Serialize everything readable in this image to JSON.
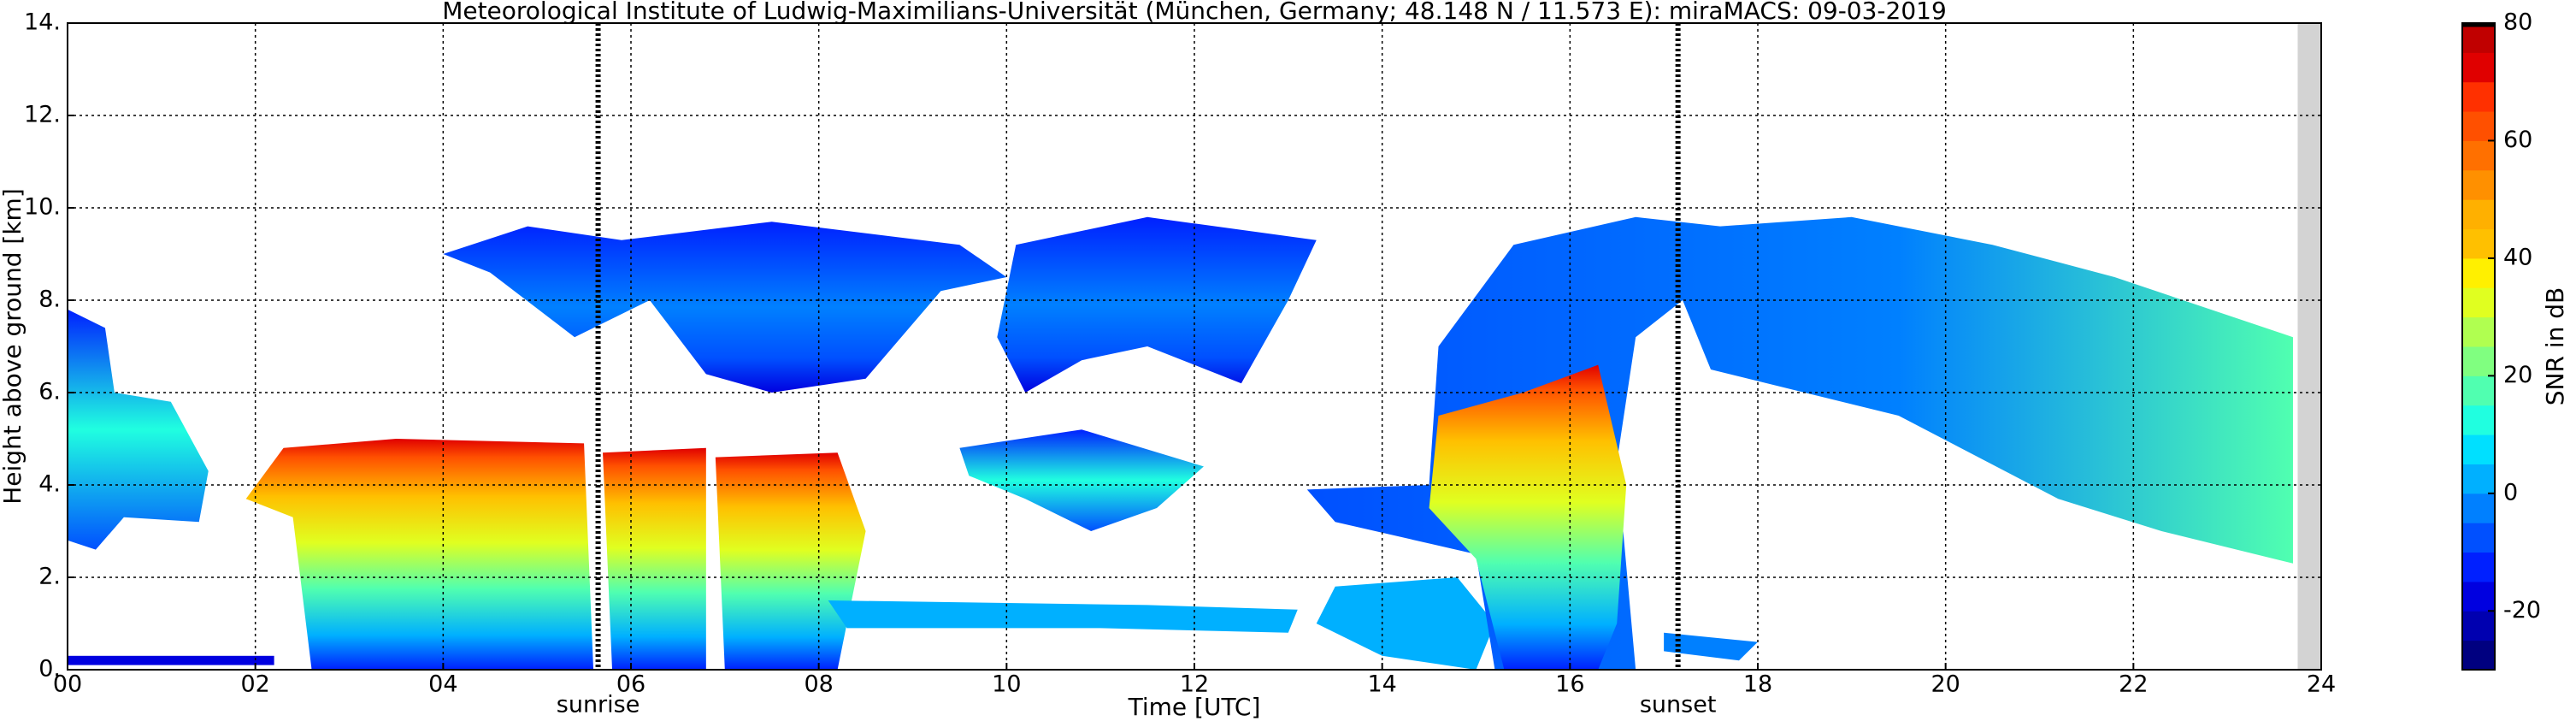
{
  "chart_data": {
    "type": "heatmap",
    "title": "Meteorological Institute of Ludwig-Maximilians-Universität (München, Germany; 48.148 N / 11.573 E):    miraMACS: 09-03-2019",
    "xlabel": "Time [UTC]",
    "ylabel": "Height above ground [km]",
    "xlim": [
      0,
      24
    ],
    "xticks": [
      {
        "value": 0,
        "label": "00"
      },
      {
        "value": 2,
        "label": "02"
      },
      {
        "value": 4,
        "label": "04"
      },
      {
        "value": 6,
        "label": "06"
      },
      {
        "value": 8,
        "label": "08"
      },
      {
        "value": 10,
        "label": "10"
      },
      {
        "value": 12,
        "label": "12"
      },
      {
        "value": 14,
        "label": "14"
      },
      {
        "value": 16,
        "label": "16"
      },
      {
        "value": 18,
        "label": "18"
      },
      {
        "value": 20,
        "label": "20"
      },
      {
        "value": 22,
        "label": "22"
      },
      {
        "value": 24,
        "label": "24"
      }
    ],
    "ylim": [
      0,
      14
    ],
    "yticks": [
      {
        "value": 0,
        "label": "0."
      },
      {
        "value": 2,
        "label": "2."
      },
      {
        "value": 4,
        "label": "4."
      },
      {
        "value": 6,
        "label": "6."
      },
      {
        "value": 8,
        "label": "8."
      },
      {
        "value": 10,
        "label": "10."
      },
      {
        "value": 12,
        "label": "12."
      },
      {
        "value": 14,
        "label": "14."
      }
    ],
    "grid": true,
    "markers": [
      {
        "x": 5.65,
        "label": "sunrise"
      },
      {
        "x": 17.15,
        "label": "sunset"
      }
    ],
    "colorbar": {
      "label": "SNR in dB",
      "lim": [
        -30,
        80
      ],
      "ticks": [
        -20,
        0,
        20,
        40,
        60,
        80
      ],
      "colors": [
        "#000080",
        "#0000b0",
        "#0000e0",
        "#0020ff",
        "#0050ff",
        "#0080ff",
        "#00b0ff",
        "#00e0ff",
        "#20ffe0",
        "#50ffb0",
        "#80ff80",
        "#b0ff50",
        "#e0ff20",
        "#fff000",
        "#ffc000",
        "#ffb000",
        "#ff9000",
        "#ff7000",
        "#ff5000",
        "#ff3000",
        "#e00000",
        "#c00000"
      ]
    }
  }
}
